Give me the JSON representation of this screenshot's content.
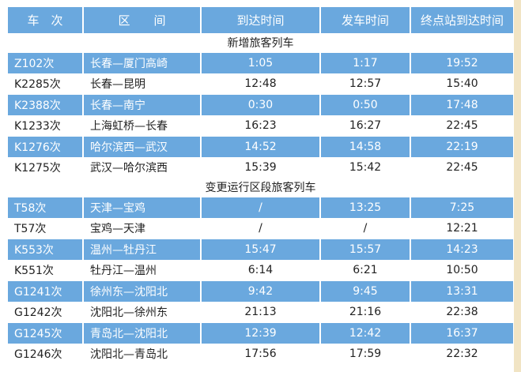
{
  "headers": [
    "车　次",
    "区　　间",
    "到达时间",
    "发车时间",
    "终点站到达时间"
  ],
  "sections": [
    {
      "title": "新增旅客列车",
      "rows": [
        [
          "Z102次",
          "长春—厦门高崎",
          "1:05",
          "1:17",
          "19:52"
        ],
        [
          "K2285次",
          "长春—昆明",
          "12:48",
          "12:57",
          "15:40"
        ],
        [
          "K2388次",
          "长春—南宁",
          "0:30",
          "0:50",
          "17:48"
        ],
        [
          "K1233次",
          "上海虹桥—长春",
          "16:23",
          "16:27",
          "22:45"
        ],
        [
          "K1276次",
          "哈尔滨西—武汉",
          "14:52",
          "14:58",
          "22:19"
        ],
        [
          "K1275次",
          "武汉—哈尔滨西",
          "15:39",
          "15:42",
          "22:45"
        ]
      ]
    },
    {
      "title": "变更运行区段旅客列车",
      "rows": [
        [
          "T58次",
          "天津—宝鸡",
          "/",
          "13:25",
          "7:25"
        ],
        [
          "T57次",
          "宝鸡—天津",
          "/",
          "/",
          "12:21"
        ],
        [
          "K553次",
          "温州—牡丹江",
          "15:47",
          "15:57",
          "14:23"
        ],
        [
          "K551次",
          "牡丹江—温州",
          "6:14",
          "6:21",
          "10:50"
        ],
        [
          "G1241次",
          "徐州东—沈阳北",
          "9:42",
          "9:45",
          "13:31"
        ],
        [
          "G1242次",
          "沈阳北—徐州东",
          "21:13",
          "21:16",
          "22:38"
        ],
        [
          "G1245次",
          "青岛北—沈阳北",
          "12:39",
          "12:42",
          "16:37"
        ],
        [
          "G1246次",
          "沈阳北—青岛北",
          "17:56",
          "17:59",
          "22:32"
        ]
      ]
    }
  ],
  "colors": {
    "header": "#6aa8de",
    "stripe": "#6aa8de",
    "edge": "#f1e4c4"
  }
}
